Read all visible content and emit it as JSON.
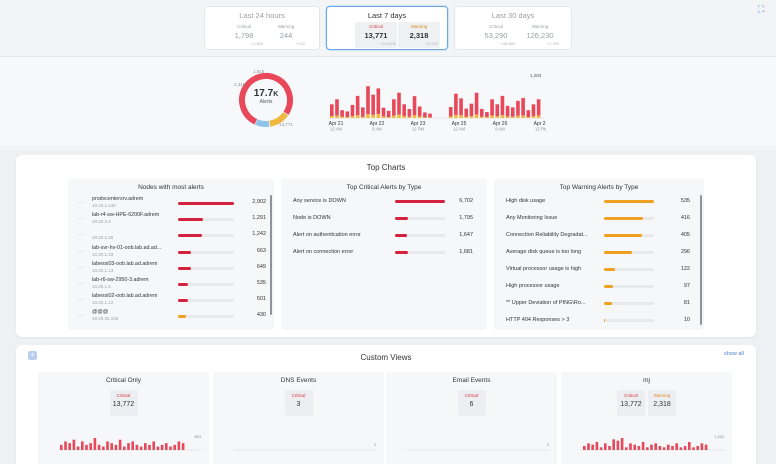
{
  "periods": [
    {
      "title": "Last 24 hours",
      "critical_label": "Critical",
      "critical": "1,798",
      "critical_delta": "+1,400",
      "warning_label": "Warning",
      "warning": "244",
      "warning_delta": "+122"
    },
    {
      "title": "Last 7 days",
      "critical_label": "Critical",
      "critical": "13,771",
      "critical_delta": "+14,678",
      "warning_label": "Warning",
      "warning": "2,318",
      "warning_delta": "+2,210"
    },
    {
      "title": "Last 30 days",
      "critical_label": "Critical",
      "critical": "53,290",
      "critical_delta": "+45,880",
      "warning_label": "Warning",
      "warning": "126,230",
      "warning_delta": "+7,780"
    }
  ],
  "donut": {
    "total": "17.7",
    "total_suffix": "K",
    "label": "Alerts",
    "top_value": "1,615",
    "left_value": "2,318",
    "bottom_value": "13,771",
    "segments": [
      {
        "name": "critical",
        "value": 13771,
        "color": "#e8485a"
      },
      {
        "name": "warning",
        "value": 2318,
        "color": "#f0b840"
      },
      {
        "name": "other",
        "value": 1615,
        "color": "#8fc3e8"
      }
    ]
  },
  "chart_data": {
    "type": "bar",
    "title": "",
    "ymax_label": "1,283",
    "ylim": [
      0,
      1283
    ],
    "x_labels": [
      {
        "date": "Apr 21",
        "time": "12 AM"
      },
      {
        "date": "Apr 22",
        "time": "8 AM"
      },
      {
        "date": "Apr 23",
        "time": "12 PM"
      },
      {
        "date": "Apr 25",
        "time": "12 AM"
      },
      {
        "date": "Apr 26",
        "time": "8 AM"
      },
      {
        "date": "Apr 27",
        "time": "12 PM"
      }
    ],
    "series": [
      {
        "name": "Critical",
        "color": "#e8485a",
        "values": [
          380,
          520,
          210,
          180,
          360,
          620,
          300,
          900,
          650,
          820,
          280,
          200,
          520,
          700,
          380,
          250,
          610,
          320,
          160,
          120,
          0,
          0,
          0,
          300,
          680,
          540,
          260,
          400,
          700,
          250,
          160,
          520,
          380,
          620,
          340,
          300,
          480,
          560,
          220,
          380,
          520
        ]
      },
      {
        "name": "Warning",
        "color": "#f0b840",
        "values": [
          60,
          80,
          40,
          30,
          60,
          90,
          40,
          120,
          100,
          130,
          50,
          30,
          80,
          110,
          60,
          40,
          90,
          50,
          20,
          20,
          0,
          0,
          0,
          50,
          100,
          90,
          40,
          60,
          110,
          40,
          30,
          80,
          60,
          90,
          50,
          40,
          70,
          80,
          30,
          60,
          80
        ]
      }
    ]
  },
  "top_charts": {
    "title": "Top Charts",
    "nodes": {
      "title": "Nodes with most alerts",
      "max": 2902,
      "items": [
        {
          "name": "prodvcentersrv.adrem",
          "ip": "10.10.1.240",
          "count": "2,902",
          "value": 2902,
          "color": "#d32240"
        },
        {
          "name": "lab-r4-sw-HPE-6200F.adrem",
          "ip": "10.20.2.4",
          "count": "1,291",
          "value": 1291,
          "color": "#d32240"
        },
        {
          "name": "",
          "ip": "10.20.2.26",
          "count": "1,242",
          "value": 1242,
          "color": "#d32240"
        },
        {
          "name": "lab-svr-hv-01-oob.lab.ad.ad...",
          "ip": "10.20.1.33",
          "count": "663",
          "value": 663,
          "color": "#d32240"
        },
        {
          "name": "labesxi03-oob.lab.ad.adrem",
          "ip": "10.20.1.13",
          "count": "649",
          "value": 649,
          "color": "#d32240"
        },
        {
          "name": "lab-r6-sw-2950-3.adrem",
          "ip": "10.20.1.5",
          "count": "535",
          "value": 535,
          "color": "#d32240"
        },
        {
          "name": "labesxi02-oob.lab.ad.adrem",
          "ip": "10.20.1.12",
          "count": "501",
          "value": 501,
          "color": "#d32240"
        },
        {
          "name": "@@@",
          "ip": "10.20.32.106",
          "count": "430",
          "value": 430,
          "color": "#f0a020"
        }
      ]
    },
    "critical": {
      "title": "Top Critical Alerts by Type",
      "max": 6702,
      "items": [
        {
          "name": "Any service is DOWN",
          "count": "6,702",
          "value": 6702
        },
        {
          "name": "Node is DOWN",
          "count": "1,795",
          "value": 1795
        },
        {
          "name": "Alert on authentication error",
          "count": "1,647",
          "value": 1647
        },
        {
          "name": "Alert on connection error",
          "count": "1,681",
          "value": 1681
        }
      ]
    },
    "warning": {
      "title": "Top Warning Alerts by Type",
      "max": 535,
      "items": [
        {
          "name": "High disk usage",
          "count": "535",
          "value": 535
        },
        {
          "name": "Any Monitoring Issue",
          "count": "416",
          "value": 416
        },
        {
          "name": "Connection Reliability Degradat...",
          "count": "405",
          "value": 405
        },
        {
          "name": "Average disk queue is too long",
          "count": "296",
          "value": 296
        },
        {
          "name": "Virtual processor usage is high",
          "count": "122",
          "value": 122
        },
        {
          "name": "High processor usage",
          "count": "97",
          "value": 97
        },
        {
          "name": "** Upper Deviation of PING\\Ro...",
          "count": "81",
          "value": 81
        },
        {
          "name": "HTTP 404 Responses > 3",
          "count": "10",
          "value": 10
        }
      ]
    }
  },
  "custom_views": {
    "title": "Custom Views",
    "add_label": "+",
    "show_all": "show all",
    "cards": [
      {
        "title": "Critical Only",
        "boxes": [
          {
            "label": "Critical",
            "value": "13,772",
            "color": "#d9363e"
          }
        ],
        "axis_max": "863",
        "bars": [
          3,
          5,
          4,
          6,
          2,
          5,
          3,
          4,
          7,
          3,
          2,
          5,
          4,
          3,
          6,
          2,
          4,
          5,
          3,
          2,
          4,
          3,
          5,
          2,
          3,
          4,
          2,
          3,
          5,
          4
        ]
      },
      {
        "title": "DNS Events",
        "boxes": [
          {
            "label": "Critical",
            "value": "3",
            "color": "#d9363e"
          }
        ],
        "axis_max": "2",
        "bars": []
      },
      {
        "title": "Email Events",
        "boxes": [
          {
            "label": "Critical",
            "value": "6",
            "color": "#d9363e"
          }
        ],
        "axis_max": "2",
        "bars": []
      },
      {
        "title": "mj",
        "boxes": [
          {
            "label": "Critical",
            "value": "13,772",
            "color": "#d9363e"
          },
          {
            "label": "Warning",
            "value": "2,318",
            "color": "#e08a1e"
          }
        ],
        "axis_max": "1,283",
        "bars": [
          3,
          5,
          4,
          6,
          2,
          5,
          3,
          8,
          7,
          9,
          2,
          5,
          4,
          3,
          6,
          2,
          4,
          5,
          3,
          2,
          4,
          3,
          5,
          2,
          3,
          6,
          2,
          3,
          5,
          4
        ]
      }
    ]
  }
}
